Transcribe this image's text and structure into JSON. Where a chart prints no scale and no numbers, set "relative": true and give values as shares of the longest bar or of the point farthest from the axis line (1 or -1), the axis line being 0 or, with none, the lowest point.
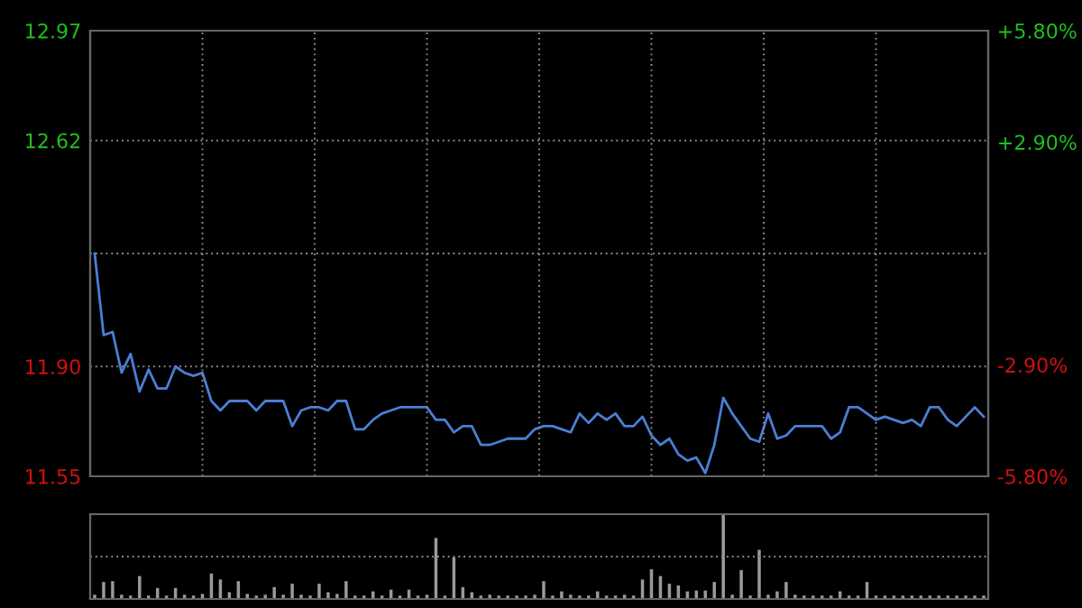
{
  "chart_data": [
    {
      "type": "line",
      "categories": [
        null,
        null,
        null,
        null,
        null,
        null,
        null,
        null,
        null,
        null,
        null,
        null,
        null,
        null,
        null,
        null,
        null,
        null,
        null,
        null,
        null,
        null,
        null,
        null,
        null,
        null,
        null,
        null,
        null,
        null,
        null,
        null,
        null,
        null,
        null,
        null,
        null,
        null,
        null,
        null,
        null,
        null,
        null,
        null,
        null,
        null,
        null,
        null,
        null,
        null,
        null,
        null,
        null,
        null,
        null,
        null,
        null,
        null,
        null,
        null,
        null,
        null,
        null,
        null,
        null,
        null,
        null,
        null,
        null,
        null,
        null,
        null,
        null,
        null,
        null,
        null,
        null,
        null,
        null,
        null,
        null,
        null,
        null,
        null,
        null,
        null,
        null,
        null,
        null,
        null,
        null,
        null,
        null,
        null,
        null,
        null,
        null,
        null,
        null,
        null
      ],
      "series": [
        {
          "color": "#4a7fd4",
          "values": [
            12.26,
            12.0,
            12.01,
            11.88,
            11.94,
            11.82,
            11.89,
            11.83,
            11.83,
            11.9,
            11.88,
            11.87,
            11.88,
            11.79,
            11.76,
            11.79,
            11.79,
            11.79,
            11.76,
            11.79,
            11.79,
            11.79,
            11.71,
            11.76,
            11.77,
            11.77,
            11.76,
            11.79,
            11.79,
            11.7,
            11.7,
            11.73,
            11.75,
            11.76,
            11.77,
            11.77,
            11.77,
            11.77,
            11.73,
            11.73,
            11.69,
            11.71,
            11.71,
            11.65,
            11.65,
            11.66,
            11.67,
            11.67,
            11.67,
            11.7,
            11.71,
            11.71,
            11.7,
            11.69,
            11.75,
            11.72,
            11.75,
            11.73,
            11.75,
            11.71,
            11.71,
            11.74,
            11.68,
            11.65,
            11.67,
            11.62,
            11.6,
            11.61,
            11.56,
            11.65,
            11.8,
            11.75,
            11.71,
            11.67,
            11.66,
            11.75,
            11.67,
            11.68,
            11.71,
            11.71,
            11.71,
            11.71,
            11.67,
            11.69,
            11.77,
            11.77,
            11.75,
            11.73,
            11.74,
            11.73,
            11.72,
            11.73,
            11.71,
            11.77,
            11.77,
            11.73,
            11.71,
            11.74,
            11.77,
            11.74
          ]
        }
      ],
      "ylim": [
        11.55,
        12.97
      ],
      "yticks": [
        11.55,
        {
          "value": 11.9,
          "label": "11.90"
        },
        {
          "value": 12.26,
          "label": null
        },
        12.62,
        12.97
      ],
      "y2lim": [
        -5.8,
        5.8
      ],
      "y2ticks": [
        {
          "value": -5.8,
          "label": "-5.80%"
        },
        {
          "value": -2.9,
          "label": "-2.90%"
        },
        {
          "value": 2.9,
          "label": "+2.90%"
        },
        {
          "value": 5.8,
          "label": "+5.80%"
        }
      ],
      "grid": true
    },
    {
      "type": "bar",
      "relative": true,
      "categories": [
        null,
        null,
        null,
        null,
        null,
        null,
        null,
        null,
        null,
        null,
        null,
        null,
        null,
        null,
        null,
        null,
        null,
        null,
        null,
        null,
        null,
        null,
        null,
        null,
        null,
        null,
        null,
        null,
        null,
        null,
        null,
        null,
        null,
        null,
        null,
        null,
        null,
        null,
        null,
        null,
        null,
        null,
        null,
        null,
        null,
        null,
        null,
        null,
        null,
        null,
        null,
        null,
        null,
        null,
        null,
        null,
        null,
        null,
        null,
        null,
        null,
        null,
        null,
        null,
        null,
        null,
        null,
        null,
        null,
        null,
        null,
        null,
        null,
        null,
        null,
        null,
        null,
        null,
        null,
        null,
        null,
        null,
        null,
        null,
        null,
        null,
        null,
        null,
        null,
        null,
        null,
        null,
        null,
        null,
        null,
        null,
        null,
        null,
        null,
        null
      ],
      "color": "#9a9a9a",
      "values": [
        0.05,
        0.2,
        0.21,
        0.05,
        0.04,
        0.27,
        0.04,
        0.13,
        0.04,
        0.13,
        0.05,
        0.04,
        0.06,
        0.3,
        0.23,
        0.08,
        0.21,
        0.06,
        0.04,
        0.05,
        0.14,
        0.05,
        0.18,
        0.05,
        0.04,
        0.18,
        0.08,
        0.06,
        0.21,
        0.04,
        0.04,
        0.09,
        0.04,
        0.11,
        0.04,
        0.11,
        0.04,
        0.05,
        0.72,
        0.04,
        0.49,
        0.14,
        0.08,
        0.04,
        0.05,
        0.04,
        0.04,
        0.04,
        0.04,
        0.05,
        0.21,
        0.04,
        0.09,
        0.05,
        0.04,
        0.04,
        0.09,
        0.04,
        0.04,
        0.05,
        0.04,
        0.23,
        0.35,
        0.27,
        0.18,
        0.16,
        0.09,
        0.1,
        0.1,
        0.2,
        1.0,
        0.05,
        0.34,
        0.04,
        0.58,
        0.05,
        0.09,
        0.2,
        0.05,
        0.04,
        0.04,
        0.04,
        0.04,
        0.09,
        0.04,
        0.04,
        0.2,
        0.04,
        0.04,
        0.04,
        0.04,
        0.04,
        0.04,
        0.04,
        0.04,
        0.04,
        0.04,
        0.04,
        0.04,
        0.04
      ],
      "ref_lines": [
        {
          "axis": "y",
          "value": 0.5,
          "color": "#888888",
          "line_style": "dotted"
        }
      ]
    }
  ]
}
